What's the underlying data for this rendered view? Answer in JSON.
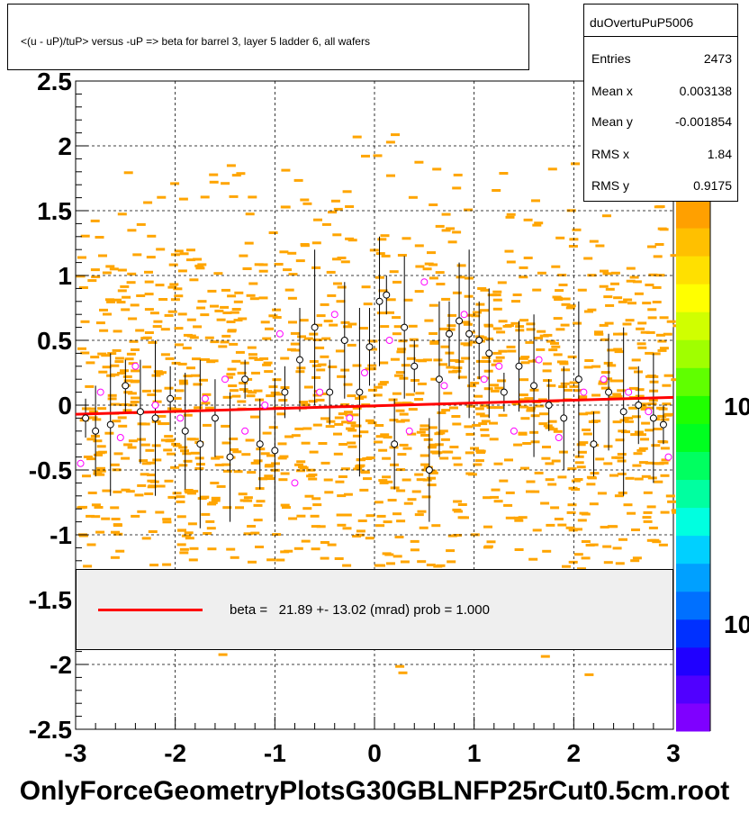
{
  "title": "<(u - uP)/tuP> versus  -uP => beta for barrel 3, layer 5 ladder 6, all wafers",
  "stats": {
    "name": "duOvertuPuP5006",
    "rows": [
      {
        "key": "Entries",
        "value": "2473"
      },
      {
        "key": "Mean x",
        "value": "0.003138"
      },
      {
        "key": "Mean y",
        "value": "-0.001854"
      },
      {
        "key": "RMS x",
        "value": "1.84"
      },
      {
        "key": "RMS y",
        "value": "0.9175"
      }
    ]
  },
  "legend": {
    "text": "beta =   21.89 +- 13.02 (mrad) prob = 1.000",
    "color": "#ff0000"
  },
  "footer": "OnlyForceGeometryPlotsG30GBLNFP25rCut0.5cm.root",
  "colorbar_labels": [
    "10",
    "10"
  ],
  "chart_data": {
    "type": "scatter",
    "title": "<(u - uP)/tuP> versus  -uP => beta for barrel 3, layer 5 ladder 6, all wafers",
    "xlim": [
      -3,
      3
    ],
    "ylim": [
      -2.5,
      2.5
    ],
    "x_ticks": [
      "-3",
      "-2",
      "-1",
      "0",
      "1",
      "2",
      "3"
    ],
    "y_ticks": [
      "-2.5",
      "-2",
      "-1.5",
      "-1",
      "-0.5",
      "0",
      "0.5",
      "1",
      "1.5",
      "2",
      "2.5"
    ],
    "grid": true,
    "background_color": "#ffa500",
    "fit_line": {
      "color": "#ff0000",
      "x": [
        -3,
        3
      ],
      "y": [
        -0.07,
        0.06
      ]
    },
    "profile_points": {
      "black": [
        [
          -2.9,
          -0.1
        ],
        [
          -2.8,
          -0.2
        ],
        [
          -2.65,
          -0.15
        ],
        [
          -2.5,
          0.15
        ],
        [
          -2.35,
          -0.05
        ],
        [
          -2.2,
          -0.1
        ],
        [
          -2.05,
          0.05
        ],
        [
          -1.9,
          -0.2
        ],
        [
          -1.75,
          -0.3
        ],
        [
          -1.6,
          -0.1
        ],
        [
          -1.45,
          -0.4
        ],
        [
          -1.3,
          0.2
        ],
        [
          -1.15,
          -0.3
        ],
        [
          -1.0,
          -0.35
        ],
        [
          -0.9,
          0.1
        ],
        [
          -0.75,
          0.35
        ],
        [
          -0.6,
          0.6
        ],
        [
          -0.45,
          0.1
        ],
        [
          -0.3,
          0.5
        ],
        [
          -0.15,
          0.1
        ],
        [
          -0.05,
          0.45
        ],
        [
          0.05,
          0.8
        ],
        [
          0.12,
          0.85
        ],
        [
          0.2,
          -0.3
        ],
        [
          0.3,
          0.6
        ],
        [
          0.4,
          0.3
        ],
        [
          0.55,
          -0.5
        ],
        [
          0.65,
          0.2
        ],
        [
          0.75,
          0.55
        ],
        [
          0.85,
          0.65
        ],
        [
          0.95,
          0.55
        ],
        [
          1.05,
          0.5
        ],
        [
          1.15,
          0.4
        ],
        [
          1.3,
          0.1
        ],
        [
          1.45,
          0.3
        ],
        [
          1.6,
          0.15
        ],
        [
          1.75,
          0.0
        ],
        [
          1.9,
          -0.1
        ],
        [
          2.05,
          0.2
        ],
        [
          2.2,
          -0.3
        ],
        [
          2.35,
          0.1
        ],
        [
          2.5,
          -0.05
        ],
        [
          2.65,
          0.0
        ],
        [
          2.8,
          -0.1
        ],
        [
          2.9,
          -0.15
        ]
      ],
      "magenta": [
        [
          -2.95,
          -0.45
        ],
        [
          -2.75,
          0.1
        ],
        [
          -2.55,
          -0.25
        ],
        [
          -2.4,
          0.3
        ],
        [
          -2.2,
          0.0
        ],
        [
          -1.95,
          -0.1
        ],
        [
          -1.7,
          0.05
        ],
        [
          -1.5,
          0.2
        ],
        [
          -1.3,
          -0.2
        ],
        [
          -1.1,
          0.0
        ],
        [
          -0.95,
          0.55
        ],
        [
          -0.8,
          -0.6
        ],
        [
          -0.55,
          0.1
        ],
        [
          -0.4,
          0.7
        ],
        [
          -0.25,
          -0.1
        ],
        [
          -0.1,
          0.25
        ],
        [
          0.15,
          0.5
        ],
        [
          0.35,
          -0.2
        ],
        [
          0.5,
          0.95
        ],
        [
          0.7,
          0.15
        ],
        [
          0.9,
          0.7
        ],
        [
          1.1,
          0.2
        ],
        [
          1.25,
          0.3
        ],
        [
          1.4,
          -0.2
        ],
        [
          1.65,
          0.35
        ],
        [
          1.85,
          -0.25
        ],
        [
          2.1,
          0.1
        ],
        [
          2.3,
          0.2
        ],
        [
          2.55,
          0.1
        ],
        [
          2.75,
          -0.05
        ],
        [
          2.95,
          -0.4
        ]
      ]
    }
  }
}
